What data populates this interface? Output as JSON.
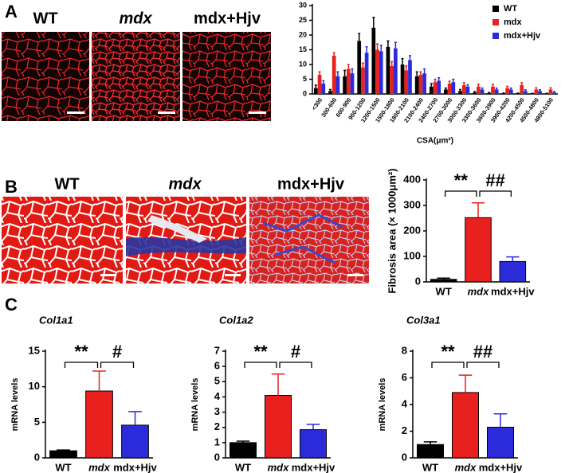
{
  "panels": {
    "A": {
      "letter": "A",
      "images": [
        "WT",
        "mdx",
        "mdx+Hjv"
      ]
    },
    "B": {
      "letter": "B",
      "images": [
        "WT",
        "mdx",
        "mdx+Hjv"
      ]
    },
    "C": {
      "letter": "C"
    }
  },
  "chart_data": [
    {
      "type": "grouped-bar",
      "xlabel": "CSA(μm²)",
      "categories": [
        "<300",
        "300-600",
        "600-900",
        "900-1200",
        "1200-1500",
        "1500-1800",
        "1800-2100",
        "2100-2400",
        "2400-2700",
        "2700-3000",
        "3000-3300",
        "3300-3600",
        "3600-3900",
        "3900-4200",
        "4200-4500",
        "4500-4800",
        "4800-5100"
      ],
      "series": [
        {
          "name": "WT",
          "color": "#000000",
          "values": [
            2,
            1,
            6,
            18,
            22.5,
            16,
            10,
            6,
            2.5,
            1.5,
            1,
            0.5,
            0.3,
            0.2,
            0.2,
            0.1,
            0.1
          ],
          "errors": [
            1,
            0.5,
            2,
            2.5,
            3.5,
            2,
            2,
            1.5,
            1,
            0.5,
            0.5,
            0.3,
            0.2,
            0.1,
            0.1,
            0.1,
            0.1
          ]
        },
        {
          "name": "mdx",
          "color": "#e8201e",
          "values": [
            6.5,
            13,
            8.5,
            9,
            15,
            9.5,
            8,
            6.5,
            4,
            3.5,
            3,
            2.5,
            2.5,
            2,
            3,
            1.5,
            1.5
          ],
          "errors": [
            1,
            1,
            1.5,
            1.5,
            2,
            1.5,
            1.5,
            1,
            1,
            0.8,
            0.8,
            0.8,
            0.8,
            0.6,
            0.8,
            0.6,
            0.6
          ]
        },
        {
          "name": "mdx+Hjv",
          "color": "#2b2bd9",
          "values": [
            3.5,
            6,
            7,
            14,
            14.5,
            15.5,
            11.5,
            7,
            4.5,
            4,
            2.5,
            1.5,
            1.5,
            1.5,
            1,
            1,
            0.5
          ],
          "errors": [
            1,
            1.5,
            1.5,
            2,
            2,
            2,
            1.5,
            1.5,
            1,
            1,
            0.6,
            0.5,
            0.5,
            0.5,
            0.4,
            0.4,
            0.3
          ]
        }
      ],
      "ylim": [
        0,
        30
      ],
      "yticks": [
        0,
        5,
        10,
        15,
        20,
        25,
        30
      ],
      "legend": "top-right"
    },
    {
      "type": "bar",
      "ylabel": "Fibrosis area (× 1000μm²)",
      "categories": [
        "WT",
        "mdx",
        "mdx+Hjv"
      ],
      "values": [
        10,
        252,
        80
      ],
      "errors": [
        5,
        58,
        18
      ],
      "colors": [
        "#000000",
        "#e8201e",
        "#2b2bd9"
      ],
      "ylim": [
        0,
        400
      ],
      "yticks": [
        0,
        100,
        200,
        300,
        400
      ],
      "annotations": [
        "**",
        "##"
      ]
    },
    {
      "type": "bar",
      "title": "Col1a1",
      "ylabel": "mRNA levels",
      "categories": [
        "WT",
        "mdx",
        "mdx+Hjv"
      ],
      "values": [
        1,
        9.4,
        4.6
      ],
      "errors": [
        0.1,
        2.8,
        1.9
      ],
      "colors": [
        "#000000",
        "#e8201e",
        "#2b2bd9"
      ],
      "ylim": [
        0,
        15
      ],
      "yticks": [
        0,
        5,
        10,
        15
      ],
      "annotations": [
        "**",
        "#"
      ]
    },
    {
      "type": "bar",
      "title": "Col1a2",
      "ylabel": "mRNA levels",
      "categories": [
        "WT",
        "mdx",
        "mdx+Hjv"
      ],
      "values": [
        1,
        4.1,
        1.85
      ],
      "errors": [
        0.1,
        1.4,
        0.35
      ],
      "colors": [
        "#000000",
        "#e8201e",
        "#2b2bd9"
      ],
      "ylim": [
        0,
        7
      ],
      "yticks": [
        0,
        1,
        2,
        3,
        4,
        5,
        6,
        7
      ],
      "annotations": [
        "**",
        "#"
      ]
    },
    {
      "type": "bar",
      "title": "Col3a1",
      "ylabel": "mRNA levels",
      "categories": [
        "WT",
        "mdx",
        "mdx+Hjv"
      ],
      "values": [
        1,
        4.9,
        2.3
      ],
      "errors": [
        0.2,
        1.3,
        1.0
      ],
      "colors": [
        "#000000",
        "#e8201e",
        "#2b2bd9"
      ],
      "ylim": [
        0,
        8
      ],
      "yticks": [
        0,
        2,
        4,
        6,
        8
      ],
      "annotations": [
        "**",
        "##"
      ]
    }
  ]
}
